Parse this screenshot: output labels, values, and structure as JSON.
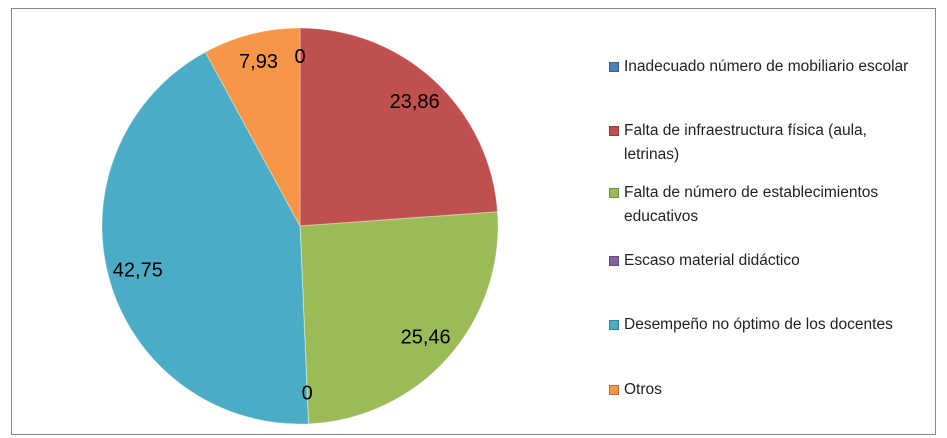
{
  "chart_data": {
    "type": "pie",
    "categories": [
      "Inadecuado número de mobiliario escolar",
      "Falta de infraestructura física (aula, letrinas)",
      "Falta de número de establecimientos educativos",
      "Escaso material didáctico",
      "Desempeño no óptimo de los docentes",
      "Otros"
    ],
    "values": [
      0,
      23.86,
      25.46,
      0,
      42.75,
      7.93
    ],
    "value_labels": [
      "0",
      "23,86",
      "25,46",
      "0",
      "42,75",
      "7,93"
    ],
    "colors": [
      "#4f81bd",
      "#c0504d",
      "#9bbb59",
      "#8064a2",
      "#4bacc6",
      "#f79646"
    ],
    "legend": "right"
  }
}
